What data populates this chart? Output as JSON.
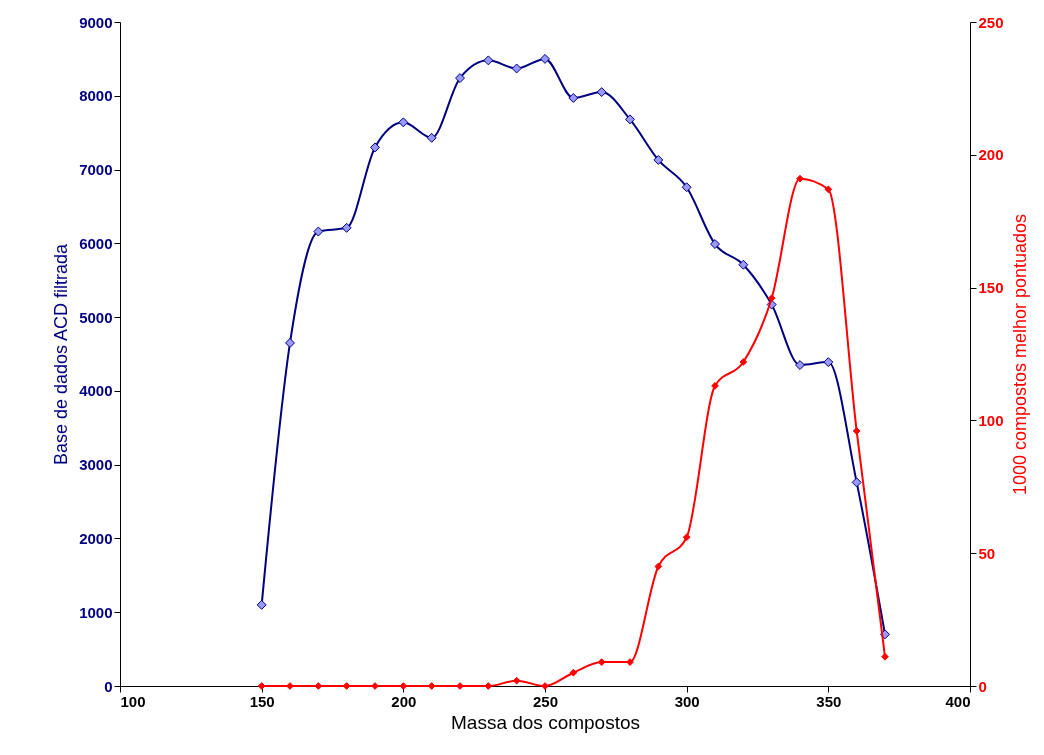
{
  "chart_data": {
    "type": "line",
    "xlabel": "Massa dos compostos",
    "ylabel": "Base de dados ACD filtrada",
    "y2label": "1000 compostos melhor pontuados",
    "x": [
      150,
      160,
      170,
      180,
      190,
      200,
      210,
      220,
      230,
      240,
      250,
      260,
      270,
      280,
      290,
      300,
      310,
      320,
      330,
      340,
      350,
      360,
      370
    ],
    "series": [
      {
        "color": "#000080",
        "values": [
          1100,
          4650,
          6160,
          6210,
          7300,
          7640,
          7430,
          8240,
          8480,
          8370,
          8500,
          7970,
          8050,
          7680,
          7130,
          6760,
          5990,
          5710,
          5170,
          4350,
          4390,
          2760,
          700
        ]
      },
      {
        "color": "#ff0000",
        "axis": "y2",
        "values": [
          0,
          0,
          0,
          0,
          0,
          0,
          0,
          0,
          0,
          2,
          0,
          5,
          9,
          9,
          45,
          56,
          113,
          122,
          146,
          191,
          187,
          96,
          11
        ]
      }
    ],
    "xlim": [
      100,
      400
    ],
    "xticks": [
      100,
      150,
      200,
      250,
      300,
      350,
      400
    ],
    "ylim": [
      0,
      9000
    ],
    "yticks": [
      0,
      1000,
      2000,
      3000,
      4000,
      5000,
      6000,
      7000,
      8000,
      9000
    ],
    "y2lim": [
      0,
      250
    ],
    "y2ticks": [
      0,
      50,
      100,
      150,
      200,
      250
    ],
    "grid": false,
    "marker": "diamond",
    "line_style": "solid"
  }
}
